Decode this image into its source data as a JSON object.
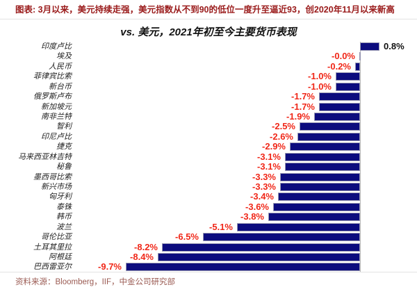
{
  "header": {
    "title": "图表: 3月以来，美元持续走强，美元指数从不到90的低位一度升至逼近93，创2020年11月以来新高",
    "title_color": "#9a1b1b"
  },
  "chart_data": {
    "type": "bar",
    "orientation": "horizontal",
    "title": "vs. 美元，2021年初至今主要货币表现",
    "categories": [
      "印度卢比",
      "埃及",
      "人民币",
      "菲律宾比索",
      "新台币",
      "俄罗斯卢布",
      "新加坡元",
      "南非兰特",
      "智利",
      "印尼卢比",
      "捷克",
      "马来西亚林吉特",
      "秘鲁",
      "墨西哥比索",
      "新兴市场",
      "匈牙利",
      "泰铢",
      "韩币",
      "波兰",
      "哥伦比亚",
      "土耳其里拉",
      "阿根廷",
      "巴西雷亚尔"
    ],
    "values": [
      0.8,
      -0.0,
      -0.2,
      -1.0,
      -1.0,
      -1.7,
      -1.7,
      -1.9,
      -2.5,
      -2.6,
      -2.9,
      -3.1,
      -3.1,
      -3.3,
      -3.3,
      -3.4,
      -3.6,
      -3.8,
      -5.1,
      -6.5,
      -8.2,
      -8.4,
      -9.7
    ],
    "value_labels": [
      "0.8%",
      "-0.0%",
      "-0.2%",
      "-1.0%",
      "-1.0%",
      "-1.7%",
      "-1.7%",
      "-1.9%",
      "-2.5%",
      "-2.6%",
      "-2.9%",
      "-3.1%",
      "-3.1%",
      "-3.3%",
      "-3.3%",
      "-3.4%",
      "-3.6%",
      "-3.8%",
      "-5.1%",
      "-6.5%",
      "-8.2%",
      "-8.4%",
      "-9.7%"
    ],
    "unit": "%",
    "bar_color": "#0c0c7e",
    "negative_label_color": "#f02718",
    "positive_label_color": "#111111",
    "xlim": [
      -10.5,
      2.4
    ],
    "grid": false,
    "legend": false,
    "zero_axis": true
  },
  "footer": {
    "source": "资料来源：Bloomberg，IIF，中金公司研究部",
    "source_color": "#9a5a52"
  }
}
